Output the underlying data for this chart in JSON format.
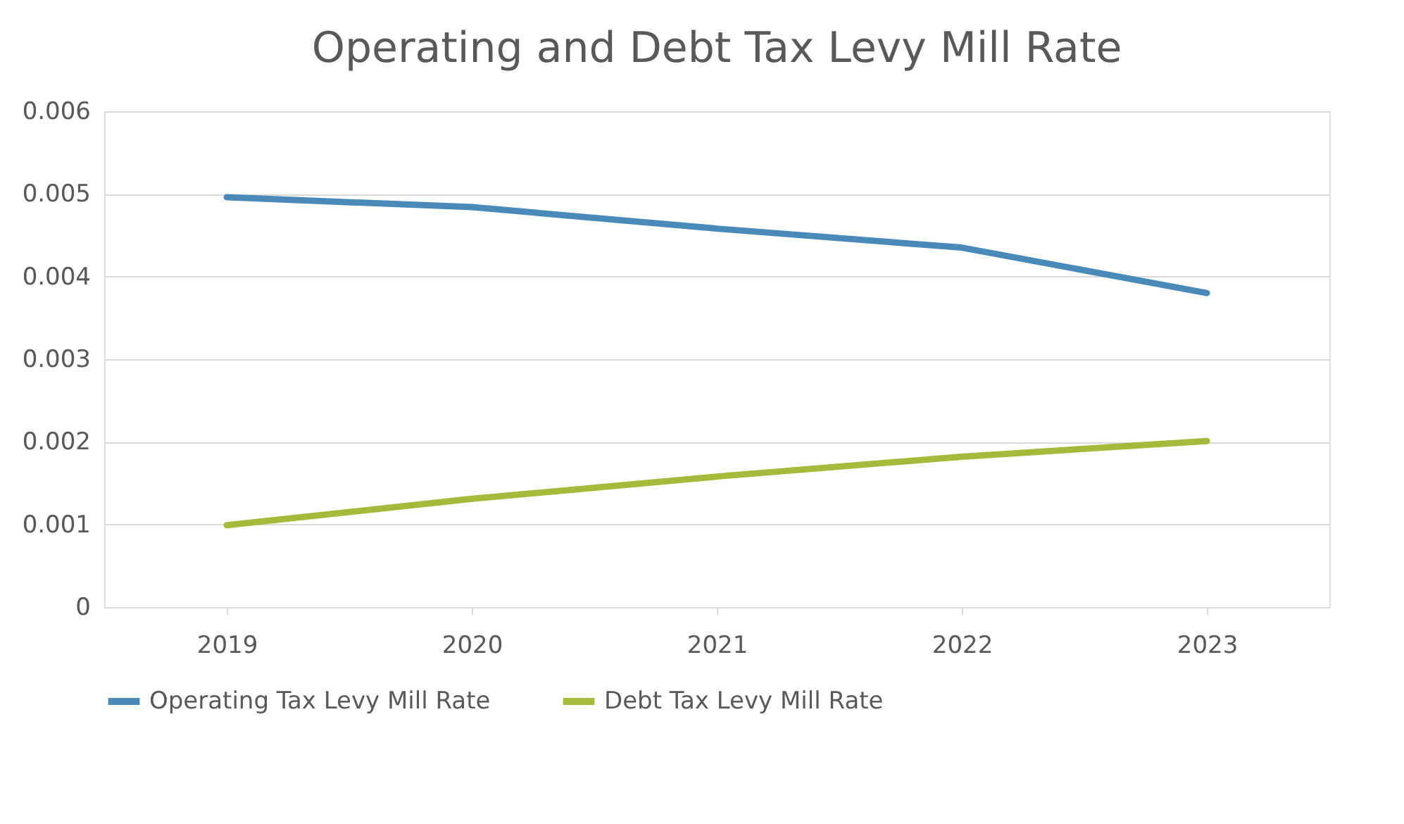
{
  "chart_data": {
    "type": "line",
    "title": "Operating and Debt Tax Levy Mill Rate",
    "categories": [
      "2019",
      "2020",
      "2021",
      "2022",
      "2023"
    ],
    "series": [
      {
        "name": "Operating Tax Levy Mill Rate",
        "color": "#4a8ab8",
        "values": [
          0.00496,
          0.00484,
          0.00458,
          0.00435,
          0.0038
        ]
      },
      {
        "name": "Debt Tax Levy Mill Rate",
        "color": "#a4ba3a",
        "values": [
          0.00099,
          0.00131,
          0.00158,
          0.00182,
          0.00201
        ]
      }
    ],
    "ylim": [
      0,
      0.006
    ],
    "yticks": [
      0,
      0.001,
      0.002,
      0.003,
      0.004,
      0.005,
      0.006
    ],
    "grid": "y",
    "legend": "bottom",
    "marker": "none",
    "line_style": "solid"
  }
}
